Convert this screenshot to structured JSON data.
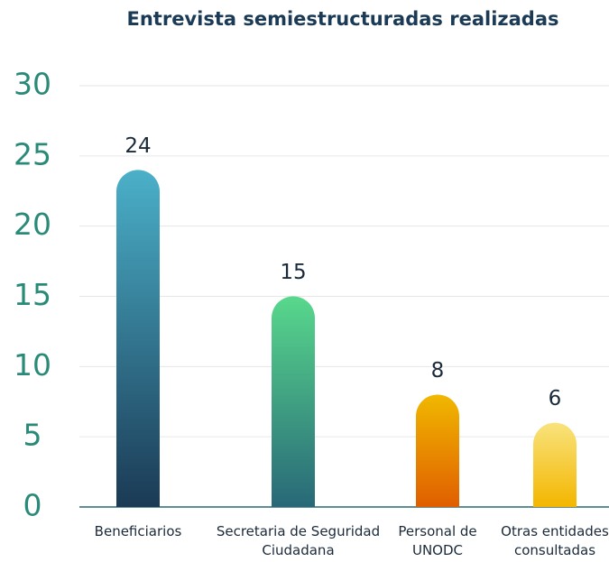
{
  "chart_data": {
    "type": "bar",
    "title": "Entrevista semiestructuradas realizadas",
    "categories": [
      "Beneficiarios",
      "Secretaria de Seguridad Ciudadana",
      "Personal de UNODC",
      "Otras entidades consultadas"
    ],
    "values": [
      24,
      15,
      8,
      6
    ],
    "colors": [
      [
        "#4bb0c9",
        "#1b3a55"
      ],
      [
        "#58d88c",
        "#286878"
      ],
      [
        "#f0b800",
        "#e05e00"
      ],
      [
        "#f8e37c",
        "#f4b600"
      ]
    ],
    "ylim": [
      0,
      30
    ],
    "yticks": [
      0,
      5,
      10,
      15,
      20,
      25,
      30
    ],
    "grid": true
  }
}
